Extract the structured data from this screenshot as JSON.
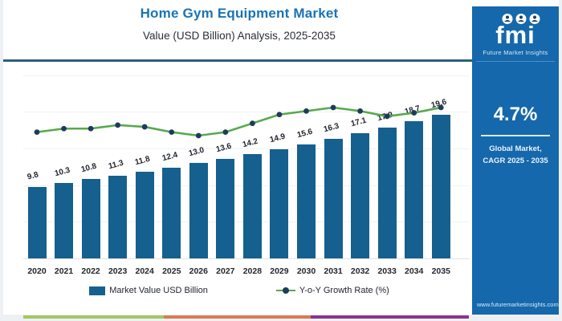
{
  "header": {
    "title": "Home Gym Equipment Market",
    "subtitle": "Value (USD Billion) Analysis, 2025-2035"
  },
  "chart_data": {
    "type": "bar",
    "combo": "bar+line",
    "title": "Home Gym Equipment Market",
    "subtitle": "Value (USD Billion) Analysis, 2025-2035",
    "categories": [
      "2020",
      "2021",
      "2022",
      "2023",
      "2024",
      "2025",
      "2026",
      "2027",
      "2028",
      "2029",
      "2030",
      "2031",
      "2032",
      "2033",
      "2034",
      "2035"
    ],
    "series": [
      {
        "name": "Market Value USD Billion",
        "type": "bar",
        "values": [
          9.8,
          10.3,
          10.8,
          11.3,
          11.8,
          12.4,
          13.0,
          13.6,
          14.2,
          14.9,
          15.6,
          16.3,
          17.1,
          17.9,
          18.7,
          19.6
        ],
        "labels_visible": true
      },
      {
        "name": "Y-o-Y Growth Rate (%)",
        "type": "line",
        "values": [
          4.4,
          4.5,
          4.5,
          4.6,
          4.55,
          4.4,
          4.3,
          4.4,
          4.65,
          4.9,
          5.0,
          5.1,
          5.0,
          4.85,
          4.95,
          5.1
        ],
        "values_estimated": true,
        "labels_visible": false
      }
    ],
    "xlabel": "",
    "ylabel": "",
    "ylim": [
      0,
      25
    ],
    "grid": "faint horizontal",
    "legend_position": "bottom"
  },
  "legend": {
    "items": [
      {
        "label": "Market Value USD Billion",
        "type": "bar"
      },
      {
        "label": "Y-o-Y Growth Rate (%)",
        "type": "line"
      }
    ]
  },
  "panel": {
    "logo_text": "fmi",
    "logo_caption": "Future Market Insights",
    "cagr_value": "4.7%",
    "market_label": "Global Market,",
    "cagr_range": "CAGR 2025 - 2035",
    "website": "www.futuremarketinsights.com"
  },
  "colors": {
    "title_blue": "#1a73b4",
    "bar_blue": "#15608f",
    "line_green": "#55aa4b",
    "dot_navy": "#1d3c5c",
    "panel_blue": "#1568ab",
    "header_rule": "#2c6080",
    "strip_green": "#a3c861",
    "strip_orange": "#dd7a4e",
    "strip_purple": "#8e3190",
    "page_bg": "#edf1f4",
    "text_dark": "#23262e"
  }
}
